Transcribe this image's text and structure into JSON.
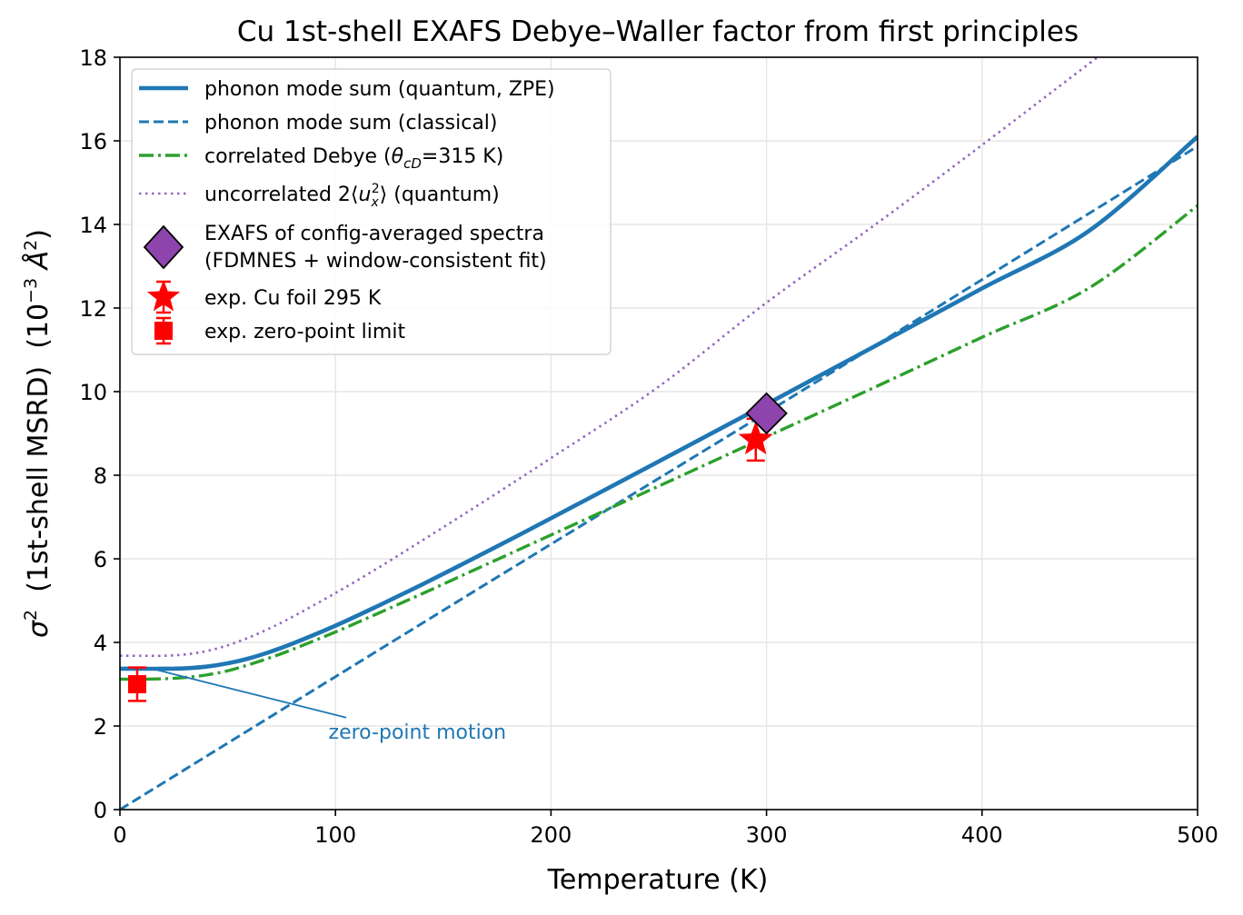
{
  "chart_data": {
    "type": "line",
    "title": "Cu 1st-shell EXAFS Debye–Waller factor from first principles",
    "xlabel": "Temperature (K)",
    "ylabel": {
      "prefix": "σ",
      "prefix_sup": "2",
      "middle": "  (1st-shell MSRD)  (10",
      "exp_sup": "−3",
      "unit": " Å",
      "unit_sup": "2",
      "close": ")"
    },
    "xlim": [
      0,
      500
    ],
    "ylim": [
      0,
      18
    ],
    "xticks": [
      "0",
      "100",
      "200",
      "300",
      "400",
      "500"
    ],
    "yticks": [
      "0",
      "2",
      "4",
      "6",
      "8",
      "10",
      "12",
      "14",
      "16",
      "18"
    ],
    "grid": true,
    "legend_position": "top-left",
    "colors": {
      "quantum": "#1f77b4",
      "classical": "#1f77b4",
      "debye": "#2ca02c",
      "uncorrelated": "#9467bd",
      "exafs": "#8e44ad",
      "experiment": "#ff0000"
    },
    "series": [
      {
        "name": "phonon mode sum (quantum, ZPE)",
        "style": "solid",
        "x": [
          0,
          10,
          20,
          30,
          40,
          50,
          60,
          70,
          80,
          100,
          120,
          140,
          160,
          180,
          200,
          250,
          300,
          350,
          400,
          450,
          500
        ],
        "y": [
          3.37,
          3.37,
          3.37,
          3.38,
          3.42,
          3.5,
          3.62,
          3.78,
          3.97,
          4.4,
          4.88,
          5.38,
          5.9,
          6.43,
          6.97,
          8.33,
          9.7,
          11.08,
          12.47,
          13.86,
          16.1
        ]
      },
      {
        "name": "phonon mode sum (classical)",
        "style": "dashed",
        "x": [
          0,
          100,
          200,
          300,
          400,
          500
        ],
        "y": [
          0,
          3.18,
          6.35,
          9.5,
          12.68,
          15.87
        ]
      },
      {
        "name": "correlated Debye (θcD=315 K)",
        "legend_parts": [
          "correlated Debye (",
          "θ",
          "cD",
          "=315 K)"
        ],
        "style": "dashdot",
        "x": [
          0,
          10,
          20,
          30,
          40,
          50,
          60,
          70,
          80,
          100,
          120,
          140,
          160,
          180,
          200,
          250,
          300,
          350,
          400,
          450,
          500
        ],
        "y": [
          3.12,
          3.12,
          3.13,
          3.16,
          3.22,
          3.32,
          3.47,
          3.64,
          3.83,
          4.25,
          4.7,
          5.16,
          5.63,
          6.1,
          6.57,
          7.74,
          8.92,
          10.1,
          11.3,
          12.49,
          14.45
        ]
      },
      {
        "name": "uncorrelated 2⟨u_x^2⟩ (quantum)",
        "legend_parts": [
          "uncorrelated 2⟨",
          "u",
          "x",
          "2",
          "⟩ (quantum)"
        ],
        "style": "dotted",
        "x": [
          0,
          10,
          20,
          30,
          40,
          50,
          60,
          70,
          80,
          100,
          120,
          140,
          160,
          180,
          200,
          250,
          300,
          350,
          400,
          450,
          454
        ],
        "y": [
          3.68,
          3.68,
          3.68,
          3.71,
          3.79,
          3.93,
          4.12,
          4.35,
          4.61,
          5.18,
          5.79,
          6.43,
          7.08,
          7.74,
          8.41,
          10.12,
          12.13,
          13.98,
          15.9,
          17.86,
          18.0
        ]
      }
    ],
    "points": [
      {
        "name": "EXAFS of config-averaged spectra",
        "name_line2": "(FDMNES + window-consistent fit)",
        "marker": "diamond",
        "x": 300,
        "y": 9.48
      },
      {
        "name": "exp. Cu foil 295 K",
        "marker": "star",
        "x": 295,
        "y": 8.85,
        "yerr": 0.5
      },
      {
        "name": "exp. zero-point limit",
        "marker": "square",
        "x": 8,
        "y": 3.0,
        "yerr": 0.4
      }
    ],
    "annotations": [
      {
        "text": "zero-point motion",
        "arrow_from": [
          105,
          2.2
        ],
        "arrow_to": [
          15,
          3.37
        ],
        "text_at": [
          138,
          1.7
        ]
      }
    ]
  }
}
